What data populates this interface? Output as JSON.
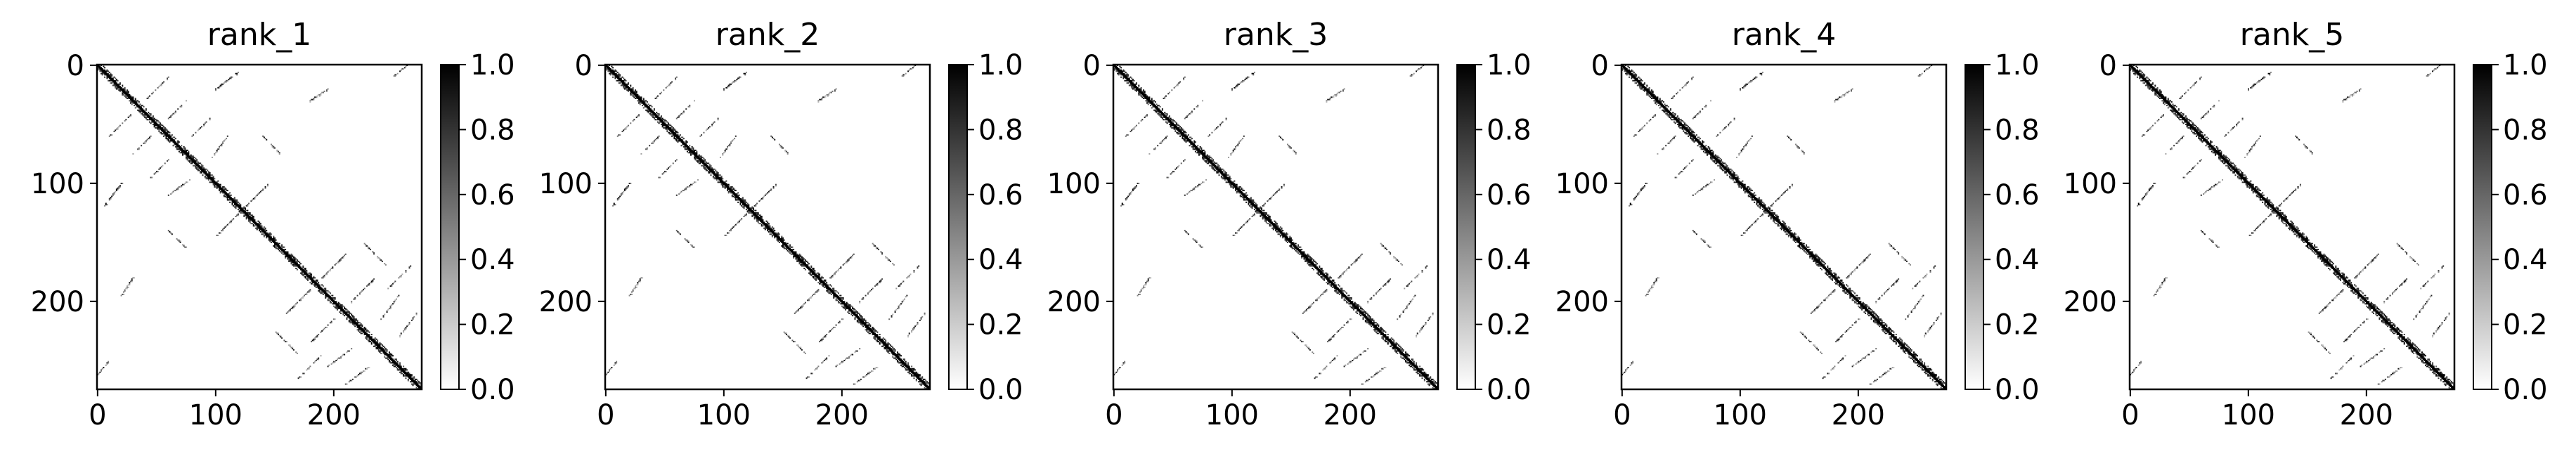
{
  "chart_data": [
    {
      "type": "heatmap",
      "title": "rank_1",
      "x_ticks": [
        "0",
        "100",
        "200"
      ],
      "y_ticks": [
        "0",
        "100",
        "200"
      ],
      "xlim": [
        0,
        275
      ],
      "ylim": [
        275,
        0
      ],
      "colormap": "Greys",
      "colorbar": {
        "ticks": [
          "0.0",
          "0.2",
          "0.4",
          "0.6",
          "0.8",
          "1.0"
        ],
        "range": [
          0,
          1
        ]
      }
    },
    {
      "type": "heatmap",
      "title": "rank_2",
      "x_ticks": [
        "0",
        "100",
        "200"
      ],
      "y_ticks": [
        "0",
        "100",
        "200"
      ],
      "xlim": [
        0,
        275
      ],
      "ylim": [
        275,
        0
      ],
      "colormap": "Greys",
      "colorbar": {
        "ticks": [
          "0.0",
          "0.2",
          "0.4",
          "0.6",
          "0.8",
          "1.0"
        ],
        "range": [
          0,
          1
        ]
      }
    },
    {
      "type": "heatmap",
      "title": "rank_3",
      "x_ticks": [
        "0",
        "100",
        "200"
      ],
      "y_ticks": [
        "0",
        "100",
        "200"
      ],
      "xlim": [
        0,
        275
      ],
      "ylim": [
        275,
        0
      ],
      "colormap": "Greys",
      "colorbar": {
        "ticks": [
          "0.0",
          "0.2",
          "0.4",
          "0.6",
          "0.8",
          "1.0"
        ],
        "range": [
          0,
          1
        ]
      }
    },
    {
      "type": "heatmap",
      "title": "rank_4",
      "x_ticks": [
        "0",
        "100",
        "200"
      ],
      "y_ticks": [
        "0",
        "100",
        "200"
      ],
      "xlim": [
        0,
        275
      ],
      "ylim": [
        275,
        0
      ],
      "colormap": "Greys",
      "colorbar": {
        "ticks": [
          "0.0",
          "0.2",
          "0.4",
          "0.6",
          "0.8",
          "1.0"
        ],
        "range": [
          0,
          1
        ]
      }
    },
    {
      "type": "heatmap",
      "title": "rank_5",
      "x_ticks": [
        "0",
        "100",
        "200"
      ],
      "y_ticks": [
        "0",
        "100",
        "200"
      ],
      "xlim": [
        0,
        275
      ],
      "ylim": [
        275,
        0
      ],
      "colormap": "Greys",
      "colorbar": {
        "ticks": [
          "0.0",
          "0.2",
          "0.4",
          "0.6",
          "0.8",
          "1.0"
        ],
        "range": [
          0,
          1
        ]
      }
    }
  ],
  "contact_map": {
    "size": 275,
    "symmetric": true,
    "diagonal_band_width": 4,
    "secondary_structure_segments": [
      {
        "i": [
          10,
          30
        ],
        "j": [
          40,
          60
        ],
        "orientation": "anti"
      },
      {
        "i": [
          30,
          45
        ],
        "j": [
          60,
          75
        ],
        "orientation": "anti"
      },
      {
        "i": [
          45,
          60
        ],
        "j": [
          80,
          95
        ],
        "orientation": "anti"
      },
      {
        "i": [
          60,
          80
        ],
        "j": [
          95,
          110
        ],
        "orientation": "anti"
      },
      {
        "i": [
          5,
          20
        ],
        "j": [
          100,
          120
        ],
        "orientation": "anti"
      },
      {
        "i": [
          100,
          120
        ],
        "j": [
          125,
          145
        ],
        "orientation": "anti"
      },
      {
        "i": [
          160,
          180
        ],
        "j": [
          190,
          210
        ],
        "orientation": "anti"
      },
      {
        "i": [
          180,
          200
        ],
        "j": [
          215,
          235
        ],
        "orientation": "anti"
      },
      {
        "i": [
          195,
          215
        ],
        "j": [
          240,
          255
        ],
        "orientation": "anti"
      },
      {
        "i": [
          170,
          190
        ],
        "j": [
          245,
          265
        ],
        "orientation": "anti"
      },
      {
        "i": [
          210,
          230
        ],
        "j": [
          255,
          270
        ],
        "orientation": "anti"
      },
      {
        "i": [
          150,
          170
        ],
        "j": [
          225,
          245
        ],
        "orientation": "parallel"
      },
      {
        "i": [
          0,
          10
        ],
        "j": [
          250,
          262
        ],
        "orientation": "anti"
      },
      {
        "i": [
          20,
          30
        ],
        "j": [
          180,
          195
        ],
        "orientation": "anti"
      },
      {
        "i": [
          60,
          75
        ],
        "j": [
          140,
          155
        ],
        "orientation": "parallel"
      }
    ]
  }
}
